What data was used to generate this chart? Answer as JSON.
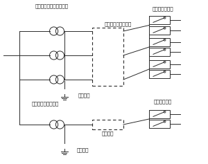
{
  "bg_color": "#ffffff",
  "line_color": "#2a2a2a",
  "dashed_color": "#2a2a2a",
  "text_color": "#1a1a1a",
  "font_size": 5.2,
  "label_sono_ta_trans": "その他の設備用トランス",
  "label_audio_trans": "音響設備用トランス",
  "label_kyotsu_cable": "共通ケーブルラック",
  "label_kyotsu_ground": "共通接地",
  "label_audio_ground": "単独接地",
  "label_audio_pipe": "単独配管",
  "label_sono_ta_panel": "その他の分電盤",
  "label_audio_panel": "音響用分電盤",
  "fig_width": 3.0,
  "fig_height": 2.37,
  "dpi": 100
}
